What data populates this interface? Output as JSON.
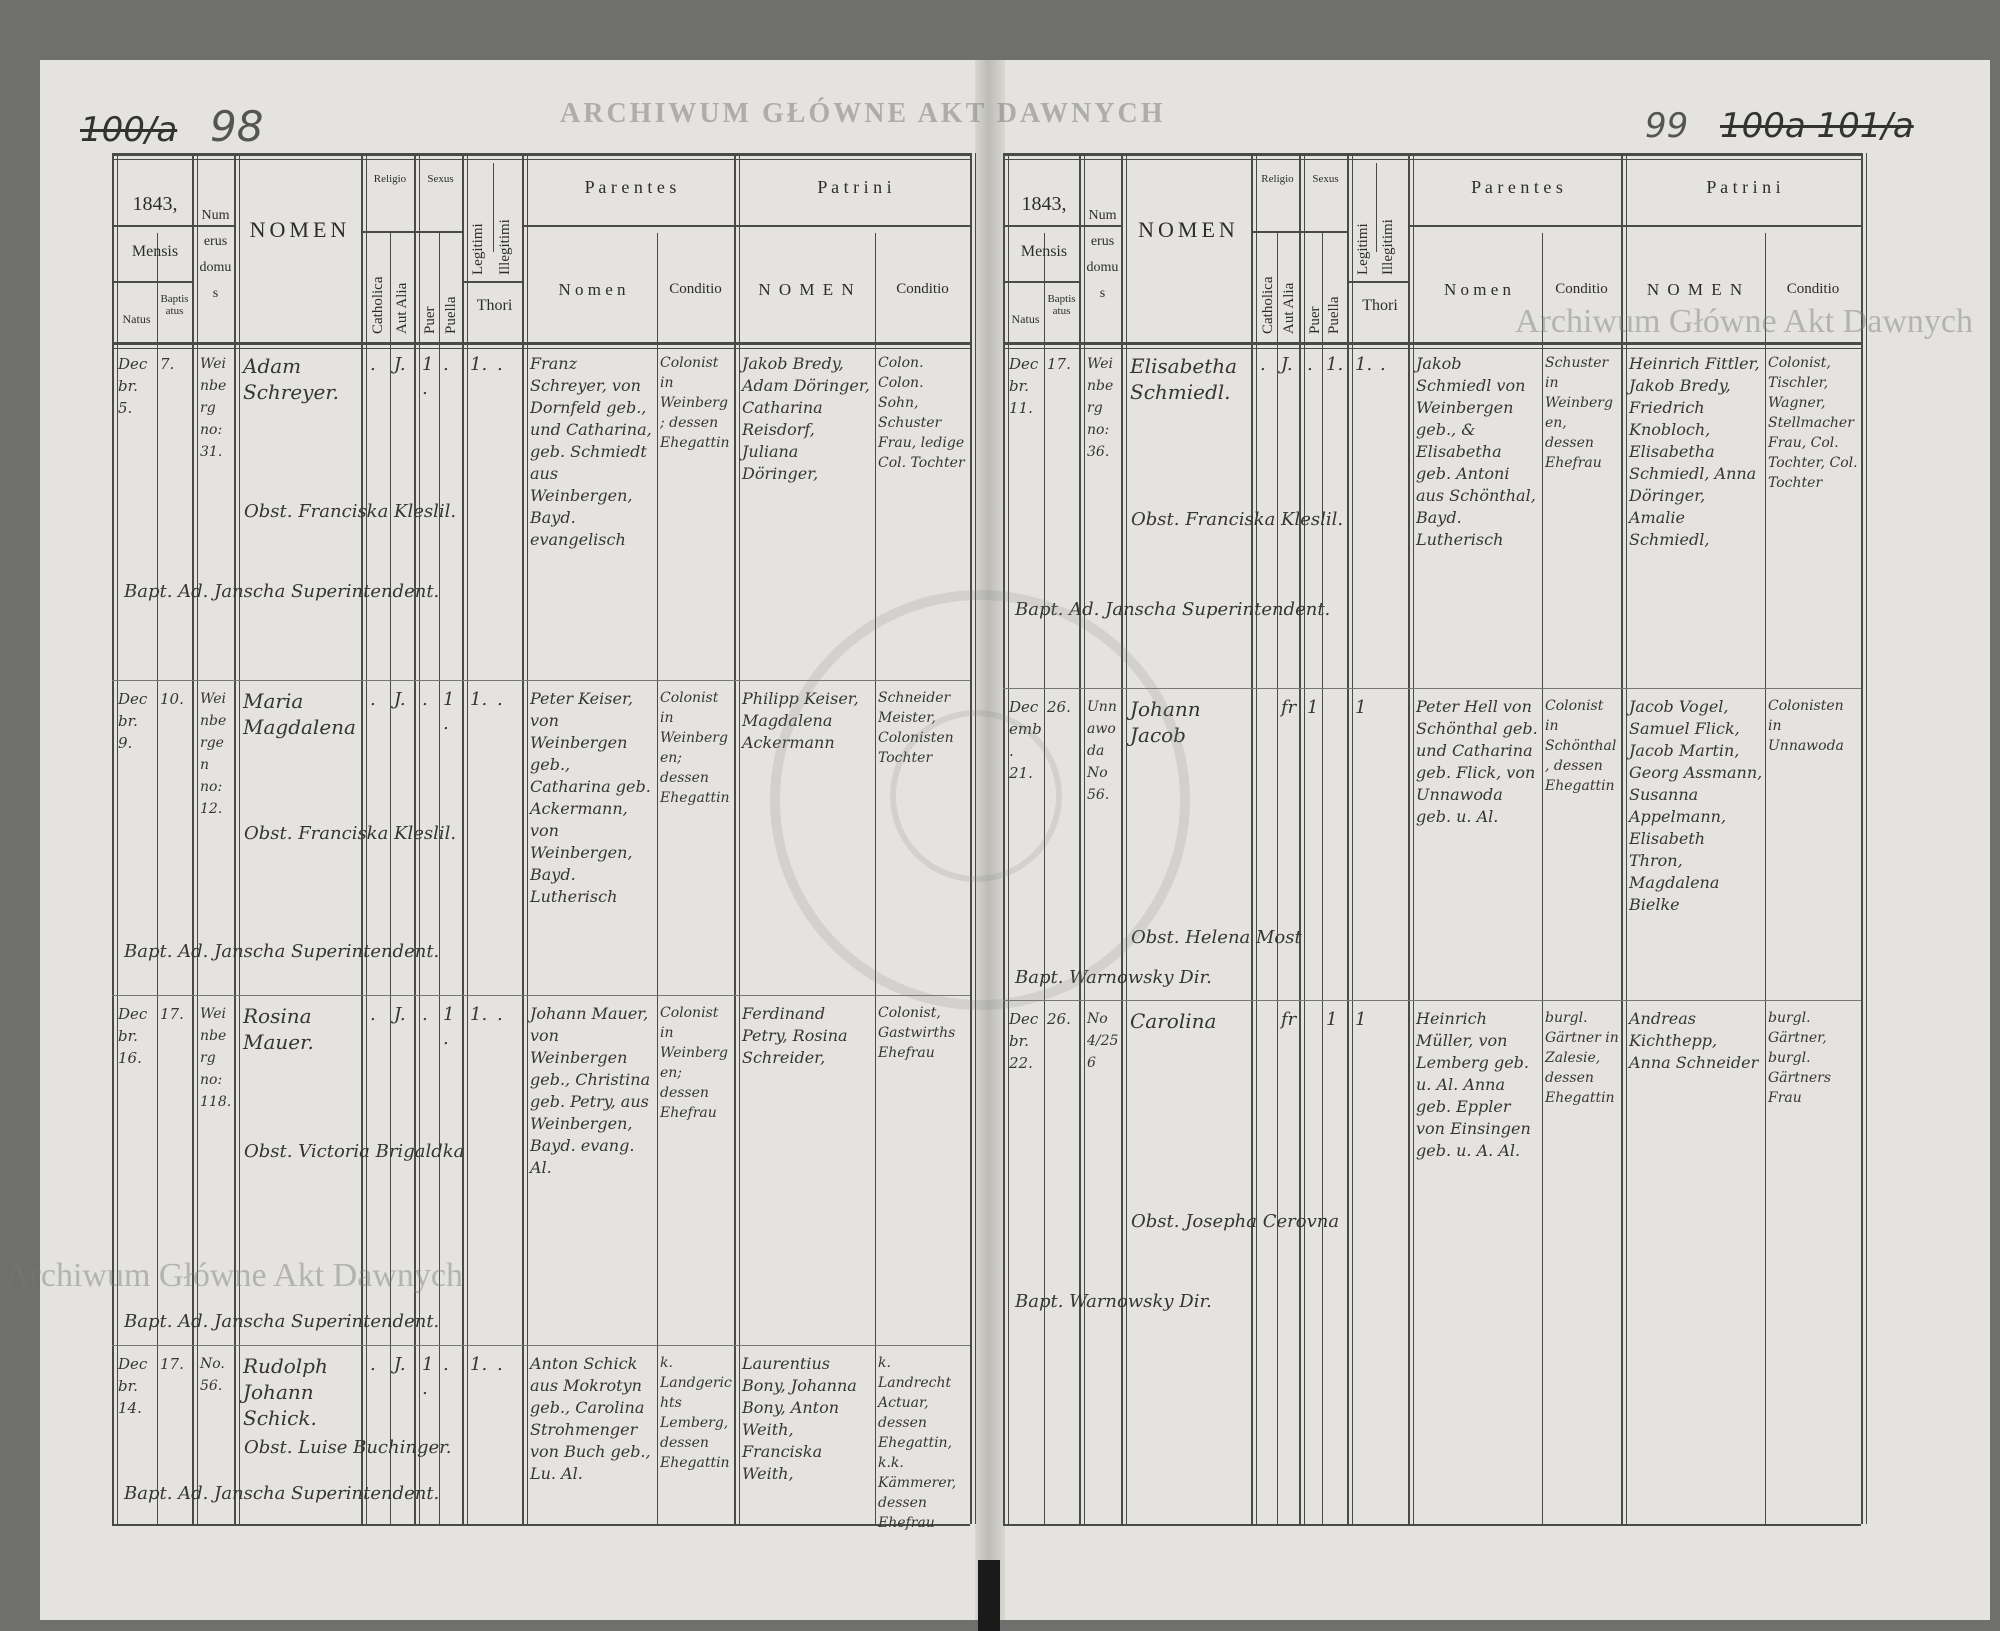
{
  "document": {
    "left_page": {
      "page_numbers": {
        "struck": "100/a",
        "current": "98"
      },
      "year": "1843,"
    },
    "right_page": {
      "page_numbers": {
        "current": "99",
        "struck": "100a 101/a"
      },
      "year": "1843,"
    },
    "headers": {
      "mensis": "Mensis",
      "natus": "Natus",
      "baptisatus": "Baptisatus",
      "numerus_domus": "Numerus domus",
      "nomen": "NOMEN",
      "religio": "Religio",
      "catholica": "Catholica",
      "aut_alia": "Aut Alia",
      "sexus": "Sexus",
      "puer": "Puer",
      "puella": "Puella",
      "legitimi": "Legitimi",
      "illegitimi": "Illegitimi",
      "thori": "Thori",
      "parentes": "P a r e n t e s",
      "parentes_nomen": "N o m e n",
      "conditio": "Conditio",
      "patrini": "P a t r i n i",
      "patrini_nomen": "N O M E N"
    },
    "entries_left": [
      {
        "natus": "Decbr. 5.",
        "baptisatus": "7.",
        "domus": "Weinberg no: 31.",
        "nomen": "Adam Schreyer.",
        "catholica": ".",
        "aut_alia": "J.",
        "puer": "1.",
        "puella": ".",
        "legitimi": "1.",
        "illegitimi": ".",
        "parentes_nomen": "Franz Schreyer, von Dornfeld geb., und Catharina, geb. Schmiedt aus Weinbergen, Bayd. evangelisch",
        "parentes_conditio": "Colonist in Weinberg; dessen Ehegattin",
        "patrini_nomen": "Jakob Bredy, Adam Döringer, Catharina Reisdorf, Juliana Döringer,",
        "patrini_conditio": "Colon. Colon. Sohn, Schuster Frau, ledige Col. Tochter",
        "obstetrix": "Obst. Franciska Kleslil.",
        "baptizans": "Bapt. Ad. Janscha Superintendent."
      },
      {
        "natus": "Decbr. 9.",
        "baptisatus": "10.",
        "domus": "Weinbergen no: 12.",
        "nomen": "Maria Magdalena",
        "catholica": ".",
        "aut_alia": "J.",
        "puer": ".",
        "puella": "1.",
        "legitimi": "1.",
        "illegitimi": ".",
        "parentes_nomen": "Peter Keiser, von Weinbergen geb., Catharina geb. Ackermann, von Weinbergen, Bayd. Lutherisch",
        "parentes_conditio": "Colonist in Weinbergen; dessen Ehegattin",
        "patrini_nomen": "Philipp Keiser, Magdalena Ackermann",
        "patrini_conditio": "Schneider Meister, Colonisten Tochter",
        "obstetrix": "Obst. Franciska Kleslil.",
        "baptizans": "Bapt. Ad. Janscha Superintendent."
      },
      {
        "natus": "Decbr. 16.",
        "baptisatus": "17.",
        "domus": "Weinberg no: 118.",
        "nomen": "Rosina Mauer.",
        "catholica": ".",
        "aut_alia": "J.",
        "puer": ".",
        "puella": "1.",
        "legitimi": "1.",
        "illegitimi": ".",
        "parentes_nomen": "Johann Mauer, von Weinbergen geb., Christina geb. Petry, aus Weinbergen, Bayd. evang. Al.",
        "parentes_conditio": "Colonist in Weinbergen; dessen Ehefrau",
        "patrini_nomen": "Ferdinand Petry, Rosina Schreider,",
        "patrini_conditio": "Colonist, Gastwirths Ehefrau",
        "obstetrix": "Obst. Victoria Brigaldka",
        "baptizans": "Bapt. Ad. Janscha Superintendent."
      },
      {
        "natus": "Decbr. 14.",
        "baptisatus": "17.",
        "domus": "No. 56.",
        "nomen": "Rudolph Johann Schick.",
        "catholica": ".",
        "aut_alia": "J.",
        "puer": "1.",
        "puella": ".",
        "legitimi": "1.",
        "illegitimi": ".",
        "parentes_nomen": "Anton Schick aus Mokrotyn geb., Carolina Strohmenger von Buch geb., Lu. Al.",
        "parentes_conditio": "k. Landgerichts Lemberg, dessen Ehegattin",
        "patrini_nomen": "Laurentius Bony, Johanna Bony, Anton Weith, Franciska Weith,",
        "patrini_conditio": "k. Landrecht Actuar, dessen Ehegattin, k.k. Kämmerer, dessen Ehefrau",
        "obstetrix": "Obst. Luise Buchinger.",
        "baptizans": "Bapt. Ad. Janscha Superintendent."
      }
    ],
    "entries_right": [
      {
        "natus": "Decbr. 11.",
        "baptisatus": "17.",
        "domus": "Weinberg no: 36.",
        "nomen": "Elisabetha Schmiedl.",
        "catholica": ".",
        "aut_alia": "J.",
        "puer": ".",
        "puella": "1.",
        "legitimi": "1.",
        "illegitimi": ".",
        "parentes_nomen": "Jakob Schmiedl von Weinbergen geb., & Elisabetha geb. Antoni aus Schönthal, Bayd. Lutherisch",
        "parentes_conditio": "Schuster in Weinbergen, dessen Ehefrau",
        "patrini_nomen": "Heinrich Fittler, Jakob Bredy, Friedrich Knobloch, Elisabetha Schmiedl, Anna Döringer, Amalie Schmiedl,",
        "patrini_conditio": "Colonist, Tischler, Wagner, Stellmacher Frau, Col. Tochter, Col. Tochter",
        "obstetrix": "Obst. Franciska Kleslil.",
        "baptizans": "Bapt. Ad. Janscha Superintendent."
      },
      {
        "natus": "Decemb. 21.",
        "baptisatus": "26.",
        "domus": "Unnawoda No 56.",
        "nomen": "Johann Jacob",
        "catholica": "",
        "aut_alia": "fr",
        "puer": "1",
        "puella": "",
        "legitimi": "1",
        "illegitimi": "",
        "parentes_nomen": "Peter Hell von Schönthal geb. und Catharina geb. Flick, von Unnawoda geb. u. Al.",
        "parentes_conditio": "Colonist in Schönthal, dessen Ehegattin",
        "patrini_nomen": "Jacob Vogel, Samuel Flick, Jacob Martin, Georg Assmann, Susanna Appelmann, Elisabeth Thron, Magdalena Bielke",
        "patrini_conditio": "Colonisten in Unnawoda",
        "obstetrix": "Obst. Helena Most",
        "baptizans": "Bapt. Warnowsky Dir."
      },
      {
        "natus": "Decbr. 22.",
        "baptisatus": "26.",
        "domus": "No 4/256",
        "nomen": "Carolina",
        "catholica": "",
        "aut_alia": "fr",
        "puer": "",
        "puella": "1",
        "legitimi": "1",
        "illegitimi": "",
        "parentes_nomen": "Heinrich Müller, von Lemberg geb. u. Al. Anna geb. Eppler von Einsingen geb. u. A. Al.",
        "parentes_conditio": "burgl. Gärtner in Zalesie, dessen Ehegattin",
        "patrini_nomen": "Andreas Kichthepp, Anna Schneider",
        "patrini_conditio": "burgl. Gärtner, burgl. Gärtners Frau",
        "obstetrix": "Obst. Josepha Cerovna",
        "baptizans": "Bapt. Warnowsky Dir."
      }
    ],
    "watermark": "Archiwum Główne Akt Dawnych",
    "stamp_text": "ARCHIWUM GŁÓWNE AKT DAWNYCH"
  }
}
